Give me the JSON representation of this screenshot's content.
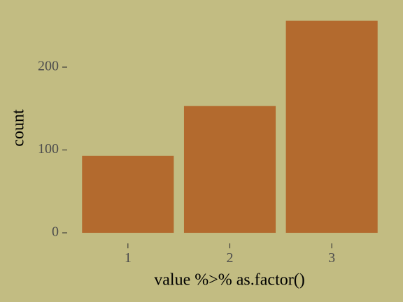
{
  "chart_data": {
    "type": "bar",
    "x_label": "value %>% as.factor()",
    "y_label": "count",
    "categories": [
      "1",
      "2",
      "3"
    ],
    "values": [
      93,
      153,
      256
    ],
    "color": "#b36a2e",
    "ylim": [
      -12.8,
      268.8
    ],
    "yticks": [
      0,
      100,
      200
    ],
    "grid": false,
    "background": "#c2bc82"
  }
}
